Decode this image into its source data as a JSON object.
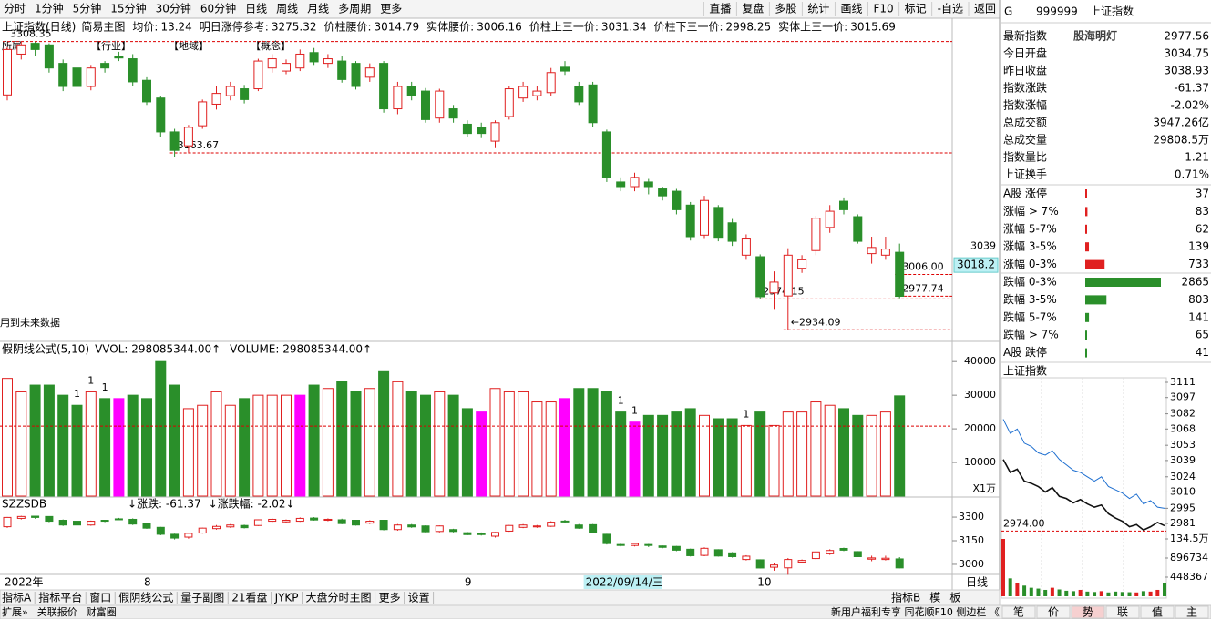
{
  "toolbar": {
    "periods": [
      "分时",
      "1分钟",
      "5分钟",
      "15分钟",
      "30分钟",
      "60分钟",
      "日线",
      "周线",
      "月线",
      "多周期",
      "更多"
    ],
    "active_period": "日线",
    "tools": [
      "直播",
      "复盘",
      "多股",
      "统计",
      "画线",
      "F10",
      "标记",
      "-自选",
      "返回"
    ]
  },
  "main": {
    "title": "上证指数(日线)",
    "indicator": "简易主图",
    "stats": [
      {
        "label": "均价:",
        "value": 13.24
      },
      {
        "label": "明日涨停参考:",
        "value": 3275.32
      },
      {
        "label": "价柱腰价:",
        "value": 3014.79
      },
      {
        "label": "实体腰价:",
        "value": 3006.16
      },
      {
        "label": "价柱上三一价:",
        "value": 3031.34
      },
      {
        "label": "价柱下三一价:",
        "value": 2998.25
      },
      {
        "label": "实体上三一价:",
        "value": 3015.69
      }
    ],
    "annotations": [
      "所属",
      "【行业】",
      "【地域】",
      "【概念】"
    ],
    "note": "用到未来数据",
    "candles": [
      [
        3239,
        3298,
        3301,
        3232
      ],
      [
        3292,
        3304,
        3308.35,
        3285
      ],
      [
        3306,
        3298,
        3308,
        3290
      ],
      [
        3304,
        3274,
        3306,
        3268
      ],
      [
        3280,
        3250,
        3285,
        3244
      ],
      [
        3274,
        3250,
        3280,
        3247
      ],
      [
        3250,
        3274,
        3278,
        3245
      ],
      [
        3280,
        3274,
        3283,
        3268
      ],
      [
        3289,
        3287,
        3295,
        3283
      ],
      [
        3286,
        3256,
        3292,
        3250
      ],
      [
        3258,
        3230,
        3262,
        3226
      ],
      [
        3235,
        3191,
        3238,
        3185
      ],
      [
        3191,
        3167,
        3195,
        3158
      ],
      [
        3173,
        3197,
        3200,
        3163
      ],
      [
        3199,
        3230,
        3233,
        3195
      ],
      [
        3227,
        3241,
        3250,
        3220
      ],
      [
        3238,
        3250,
        3256,
        3232
      ],
      [
        3247,
        3233,
        3252,
        3228
      ],
      [
        3247,
        3283,
        3286,
        3244
      ],
      [
        3274,
        3286,
        3292,
        3268
      ],
      [
        3270,
        3280,
        3285,
        3266
      ],
      [
        3274,
        3292,
        3298,
        3270
      ],
      [
        3294,
        3282,
        3300,
        3278
      ],
      [
        3280,
        3286,
        3292,
        3274
      ],
      [
        3283,
        3259,
        3290,
        3255
      ],
      [
        3280,
        3250,
        3283,
        3246
      ],
      [
        3262,
        3274,
        3280,
        3256
      ],
      [
        3280,
        3221,
        3283,
        3216
      ],
      [
        3221,
        3250,
        3256,
        3214
      ],
      [
        3250,
        3238,
        3256,
        3232
      ],
      [
        3244,
        3207,
        3248,
        3203
      ],
      [
        3209,
        3244,
        3247,
        3203
      ],
      [
        3221,
        3209,
        3226,
        3203
      ],
      [
        3201,
        3189,
        3206,
        3185
      ],
      [
        3197,
        3189,
        3203,
        3183
      ],
      [
        3179,
        3203,
        3206,
        3170
      ],
      [
        3211,
        3247,
        3250,
        3207
      ],
      [
        3235,
        3250,
        3256,
        3230
      ],
      [
        3238,
        3244,
        3250,
        3232
      ],
      [
        3242,
        3268,
        3274,
        3238
      ],
      [
        3275,
        3270,
        3283,
        3265
      ],
      [
        3250,
        3230,
        3256,
        3226
      ],
      [
        3252,
        3203,
        3256,
        3197
      ],
      [
        3191,
        3132,
        3194,
        3126
      ],
      [
        3126,
        3120,
        3132,
        3114
      ],
      [
        3120,
        3132,
        3138,
        3114
      ],
      [
        3126,
        3120,
        3130,
        3110
      ],
      [
        3117,
        3108,
        3120,
        3102
      ],
      [
        3114,
        3090,
        3117,
        3084
      ],
      [
        3096,
        3055,
        3100,
        3050
      ],
      [
        3057,
        3102,
        3108,
        3052
      ],
      [
        3093,
        3053,
        3096,
        3049
      ],
      [
        3073,
        3049,
        3078,
        3043
      ],
      [
        3031,
        3052,
        3058,
        3025
      ],
      [
        3029,
        2977,
        3032,
        2974.15
      ],
      [
        2982,
        2996,
        3010,
        2960
      ],
      [
        2978,
        3031,
        3040,
        2934.09
      ],
      [
        3014,
        3025,
        3031,
        3008
      ],
      [
        3037,
        3079,
        3082,
        3031
      ],
      [
        3067,
        3088,
        3096,
        3060
      ],
      [
        3101,
        3090,
        3106,
        3084
      ],
      [
        3081,
        3049,
        3084,
        3046
      ],
      [
        3033,
        3041,
        3055,
        3020
      ],
      [
        3031,
        3038.93,
        3055,
        3025
      ],
      [
        3034.75,
        2977.56,
        3046,
        2975
      ]
    ],
    "ylim": [
      2925,
      3315
    ],
    "yticks": [
      3039
    ],
    "cursor_price": 3018.2,
    "ref_lines": [
      {
        "value": 3308.35,
        "label": "3308.35",
        "bar": 0
      },
      {
        "value": 3163.67,
        "label": "3163.67",
        "bar": 12
      },
      {
        "value": 3006,
        "label": "3006.00",
        "bar": 64
      },
      {
        "value": 2977.74,
        "label": "2977.74",
        "bar": 64
      },
      {
        "value": 2974.15,
        "label": "2974.15",
        "bar": 54
      },
      {
        "value": 2934.09,
        "label": "←2934.09",
        "bar": 56
      }
    ]
  },
  "volume": {
    "title": "假阴线公式(5,10)",
    "vvol": "VVOL: 298085344.00↑",
    "vol": "VOLUME: 298085344.00↑",
    "values": [
      35000,
      31000,
      33000,
      33000,
      30000,
      27000,
      31000,
      29000,
      29000,
      30000,
      29000,
      40000,
      33000,
      26000,
      27000,
      31000,
      27000,
      29000,
      30000,
      30000,
      30000,
      30000,
      33000,
      32000,
      34000,
      31000,
      32000,
      37000,
      34000,
      31000,
      30000,
      31000,
      30000,
      26000,
      25000,
      32000,
      31000,
      31000,
      28000,
      28000,
      29000,
      32000,
      32000,
      31000,
      25000,
      22000,
      24000,
      24000,
      25000,
      26000,
      24000,
      23000,
      23000,
      21000,
      25000,
      21000,
      25000,
      25000,
      28000,
      27000,
      26000,
      24000,
      24000,
      25000,
      29808.5
    ],
    "highlight": [
      8,
      21,
      34,
      40,
      45
    ],
    "highlight_color": "#ff00ff",
    "markers": [
      {
        "bar": 5,
        "label": "1"
      },
      {
        "bar": 6,
        "label": "1"
      },
      {
        "bar": 7,
        "label": "1"
      },
      {
        "bar": 44,
        "label": "1"
      },
      {
        "bar": 45,
        "label": "1"
      },
      {
        "bar": 53,
        "label": "1"
      }
    ],
    "ylim": [
      0,
      43300
    ],
    "yticks": [
      40000,
      30000,
      20000,
      10000
    ],
    "unit": "X1万",
    "avg": 20800
  },
  "oscillator": {
    "title": "SZZSDB",
    "items": [
      "↓涨跌: -61.37",
      "↓涨跌幅: -2.02↓"
    ],
    "ylim": [
      2942,
      3335
    ],
    "yticks": [
      3300,
      3150,
      3000
    ]
  },
  "xaxis": {
    "labels": [
      {
        "bar": 0,
        "text": "2022年"
      },
      {
        "bar": 10,
        "text": "8"
      },
      {
        "bar": 33,
        "text": "9"
      },
      {
        "bar": 54,
        "text": "10"
      }
    ],
    "cursor": {
      "bar": 42,
      "text": "2022/09/14/三"
    },
    "period": "日线"
  },
  "tabs": [
    "指标A",
    "指标平台",
    "窗口",
    "假阴线公式",
    "量子副图",
    "21看盘",
    "JYKP",
    "大盘分时主图",
    "更多",
    "设置"
  ],
  "tabs_right": [
    "指标B",
    "模",
    "板"
  ],
  "status": {
    "left": [
      "扩展»",
      "关联报价",
      "财富圈"
    ],
    "right": "新用户福利专享  同花顺F10  侧边栏 《",
    "buttons": [
      "笔",
      "价",
      "势",
      "联",
      "值",
      "主"
    ]
  },
  "quote": {
    "prefix": "G",
    "code": "999999",
    "name": "上证指数",
    "watermark": "股海明灯",
    "rows": [
      {
        "label": "最新指数",
        "value": "2977.56",
        "color": "#2a8f2a"
      },
      {
        "label": "今日开盘",
        "value": "3034.75",
        "color": "#2a8f2a"
      },
      {
        "label": "昨日收盘",
        "value": "3038.93",
        "color": "#000"
      },
      {
        "label": "指数涨跌",
        "value": "-61.37",
        "color": "#2a8f2a"
      },
      {
        "label": "指数涨幅",
        "value": "-2.02%",
        "color": "#2a8f2a"
      },
      {
        "label": "总成交额",
        "value": "3947.26亿",
        "color": "#000"
      },
      {
        "label": "总成交量",
        "value": "29808.5万",
        "color": "#000"
      },
      {
        "label": "指数量比",
        "value": "1.21",
        "color": "#e02020"
      },
      {
        "label": "上证换手",
        "value": "0.71%",
        "color": "#000"
      }
    ]
  },
  "breadth": {
    "rows": [
      {
        "label": "A股 涨停",
        "value": 37,
        "color": "#e02020"
      },
      {
        "label": "涨幅 > 7%",
        "value": 83,
        "color": "#e02020"
      },
      {
        "label": "涨幅 5-7%",
        "value": 62,
        "color": "#e02020"
      },
      {
        "label": "涨幅 3-5%",
        "value": 139,
        "color": "#e02020"
      },
      {
        "label": "涨幅 0-3%",
        "value": 733,
        "color": "#e02020"
      },
      {
        "label": "跌幅 0-3%",
        "value": 2865,
        "color": "#2a8f2a"
      },
      {
        "label": "跌幅 3-5%",
        "value": 803,
        "color": "#2a8f2a"
      },
      {
        "label": "跌幅 5-7%",
        "value": 141,
        "color": "#2a8f2a"
      },
      {
        "label": "跌幅 > 7%",
        "value": 65,
        "color": "#2a8f2a"
      },
      {
        "label": "A股 跌停",
        "value": 41,
        "color": "#2a8f2a"
      }
    ]
  },
  "intraday": {
    "title": "上证指数",
    "ylim": [
      2971,
      3111
    ],
    "yticks": [
      3111,
      3097,
      3082,
      3068,
      3053,
      3039,
      3024,
      3010,
      2995,
      2981
    ],
    "prev_close": 3039,
    "ref": {
      "value": 2974,
      "label": "2974.00"
    },
    "blue": [
      3077,
      3064,
      3068,
      3055,
      3052,
      3046,
      3044,
      3048,
      3040,
      3035,
      3030,
      3028,
      3024,
      3020,
      3024,
      3015,
      3012,
      3009,
      3004,
      3008,
      2999,
      3002,
      2996,
      2995
    ],
    "black": [
      3040,
      3028,
      3031,
      3020,
      3018,
      3015,
      3010,
      3014,
      3006,
      3004,
      3000,
      3003,
      2999,
      2996,
      2998,
      2990,
      2986,
      2983,
      2978,
      2980,
      2975,
      2978,
      2982,
      2979
    ],
    "volume": [
      1345000,
      420000,
      300000,
      250000,
      200000,
      180000,
      150000,
      200000,
      160000,
      130000,
      120000,
      150000,
      110000,
      100000,
      120000,
      90000,
      110000,
      100000,
      95000,
      90000,
      120000,
      110000,
      150000,
      300000
    ],
    "vol_ylim": [
      0,
      1345000
    ],
    "vol_yticks": [
      {
        "value": 1345000,
        "label": "134.5万"
      },
      896734,
      448367
    ]
  }
}
